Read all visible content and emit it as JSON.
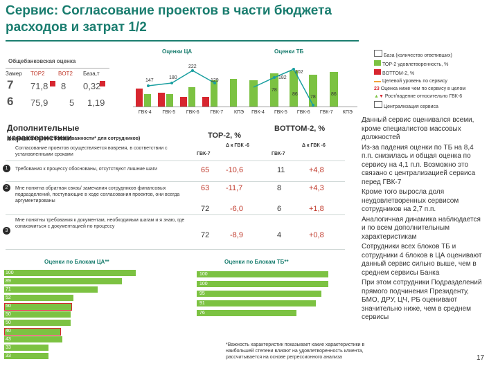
{
  "title": "Сервис: Согласование проектов в части бюджета расходов и затрат 1/2",
  "overall": {
    "label": "Общебанковская оценка",
    "headers": [
      "Замер",
      "ТОР2",
      "BOT2",
      "База,т"
    ],
    "rows": [
      {
        "zamer": "7",
        "top2": "71,8",
        "bot2": "8",
        "base": "0,32"
      },
      {
        "zamer": "6",
        "top2": "75,9",
        "bot2": "5",
        "base": "1,19"
      }
    ]
  },
  "chart_ca": {
    "title": "Оценки ЦА",
    "categories": [
      "ГВК-4",
      "ГВК-5",
      "ГВК-6",
      "ГВК-7",
      "КПЭ"
    ],
    "bars_green": [
      26,
      23,
      34,
      47,
      48
    ],
    "bars_red": [
      13,
      22,
      18,
      18,
      0
    ],
    "line_values": [
      147,
      180,
      222,
      129
    ],
    "labels_top": [
      "222",
      "180",
      "147",
      "129"
    ],
    "labels_side": [
      "28",
      "26",
      "23",
      "18",
      "34",
      "47",
      "48",
      "13"
    ]
  },
  "chart_tb": {
    "title": "Оценки ТБ",
    "categories": [
      "ГВК-4",
      "ГВК-5",
      "ГВК-6",
      "ГВК-7",
      "КПЭ"
    ],
    "labels": [
      "202",
      "182",
      "48",
      "56",
      "78",
      "86",
      "78",
      "86",
      "185",
      "5",
      "2",
      "2",
      "6"
    ]
  },
  "legend": {
    "items": [
      {
        "label": "База (количество ответивших)",
        "color": "#ffffff"
      },
      {
        "label": "ТОР-2 удовлетворенность, %",
        "color": "#7cc242"
      },
      {
        "label": "BOTTOM-2, %",
        "color": "#d7262f"
      },
      {
        "label": "Целевой уровень по сервису",
        "color": "#f2a33a"
      },
      {
        "label": "Оценка ниже чем по сервису в целом",
        "color": "#ffffff"
      },
      {
        "label": "Рост/падение относительно ГВК-6",
        "color": "#ffffff"
      },
      {
        "label": "Централизация сервиса",
        "color": "#ffffff"
      }
    ],
    "marker_value": "23"
  },
  "table": {
    "heading": "Дополнительные характеристики",
    "subheading": "(ранжированы по степени важности* для сотрудников)",
    "col_top2": "ТОР-2, %",
    "col_bottom2": "BOTTOM-2, %",
    "col_delta": "Δ к ГВК -6",
    "col_gvk7": "ГВК-7",
    "rows": [
      {
        "num": "",
        "text": "Согласование проектов осуществляется вовремя, в соответствии с установленными сроками",
        "top2": "",
        "dtop": "",
        "bot2": "",
        "dbot": ""
      },
      {
        "num": "1",
        "text": "Требования к процессу обоснованы, отсутствуют лишние шаги",
        "top2": "65",
        "dtop": "-10,6",
        "bot2": "11",
        "dbot": "+4,8"
      },
      {
        "num": "2",
        "text": "Мне понятна обратная связь/ замечания сотрудников финансовых подразделений, поступающие в ходе согласования проектов, они всегда аргументированы",
        "top2": "63",
        "dtop": "-11,7",
        "bot2": "8",
        "dbot": "+4,3"
      },
      {
        "num": "3",
        "text": "Мне понятны требования к документам, необходимым шагам и я знаю, где ознакомиться с документацией по процессу",
        "top2": "72",
        "dtop": "-6,0",
        "bot2": "6",
        "dbot": "+1,8"
      },
      {
        "num": "4",
        "text": "",
        "top2": "72",
        "dtop": "-8,9",
        "bot2": "4",
        "dbot": "+0,8"
      }
    ]
  },
  "blocks_ca": {
    "title": "Оценки по Блокам ЦА**",
    "rows": [
      {
        "left": "100",
        "val": 60
      },
      {
        "left": "89",
        "val": 66
      },
      {
        "left": "71",
        "val": 51
      },
      {
        "left": "52",
        "val": 55
      },
      {
        "left": "50",
        "val": 65
      },
      {
        "left": "50",
        "val": 54
      },
      {
        "left": "50",
        "val": 42
      },
      {
        "left": "40",
        "val": 78
      },
      {
        "left": "43",
        "val": 49
      },
      {
        "left": "33",
        "val": 65
      },
      {
        "left": "33",
        "val": 54
      },
      {
        "left": "13",
        "val": 62
      }
    ]
  },
  "blocks_tb": {
    "title": "Оценки по Блокам ТБ**",
    "rows": [
      {
        "left": "100",
        "val": 76
      },
      {
        "left": "100",
        "val": 75
      },
      {
        "left": "95",
        "val": 71
      },
      {
        "left": "91",
        "val": 83
      },
      {
        "left": "76",
        "val": 71
      }
    ]
  },
  "bullets": [
    "Данный сервис оценивался всеми, кроме специалистов массовых должностей",
    "Из-за падения оценки по ТБ на 8,4 п.п. снизилась и общая оценка по сервису на 4,1 п.п. Возможно это связано с централизацией сервиса перед ГВК-7",
    "Кроме того выросла доля неудовлетворенных сервисом сотрудников на 2,7 п.п.",
    "Аналогичная динамика наблюдается и по всем дополнительным характеристикам",
    "Сотрудники всех блоков ТБ и сотрудники 4 блоков в ЦА оценивают данный сервис сильно выше, чем в среднем сервисы Банка",
    "При этом сотрудники Подразделений прямого подчинения Президенту, БМО, ДРУ, ЦЧ, РБ оценивают значительно ниже, чем в среднем сервисы"
  ],
  "bottom_legend": {
    "item1": "ТОР-2 удовлетворенность ГВК-7",
    "item2": "Средняя оценка блока по всем сервисам"
  },
  "footnote": "*Важность характеристик показывает какие характеристики в наибольшей степени влияют на удовлетворенность клиента, рассчитывается на основе регрессионного анализа",
  "page_number": "17"
}
